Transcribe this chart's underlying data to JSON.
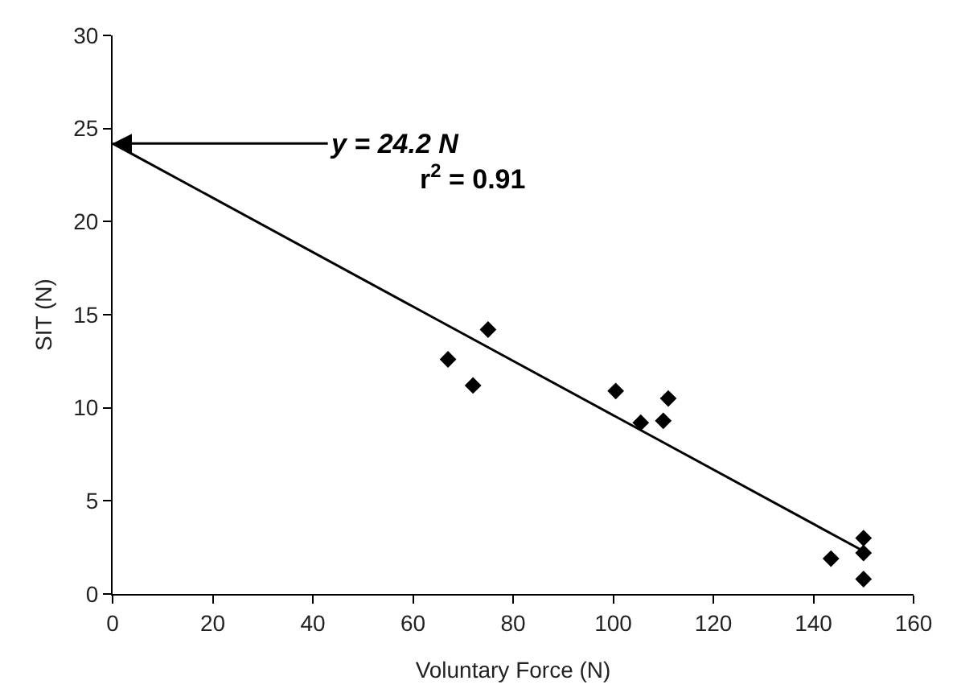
{
  "chart_data": {
    "type": "scatter",
    "xlabel": "Voluntary Force (N)",
    "ylabel": "SIT (N)",
    "xlim": [
      0,
      160
    ],
    "xticks": [
      0,
      20,
      40,
      60,
      80,
      100,
      120,
      140,
      160
    ],
    "ylim": [
      0,
      30
    ],
    "yticks": [
      0,
      5,
      10,
      15,
      20,
      25,
      30
    ],
    "grid": false,
    "series": [
      {
        "color": "#000000",
        "marker": "diamond",
        "x": [
          67,
          72,
          75,
          100.5,
          105.5,
          110,
          111,
          143.5,
          150,
          150,
          150
        ],
        "values": [
          12.6,
          11.2,
          14.2,
          10.9,
          9.2,
          9.3,
          10.5,
          1.9,
          3.0,
          2.2,
          0.8
        ]
      },
      {
        "type": "line",
        "color": "#000000",
        "line_style": "solid",
        "x": [
          0,
          150
        ],
        "values": [
          24.2,
          2.3
        ]
      }
    ],
    "annotations": [
      {
        "text": "y = 24.2 N",
        "x": 0,
        "y": 24.2
      },
      "r$^{2}$ = 0.91"
    ]
  }
}
